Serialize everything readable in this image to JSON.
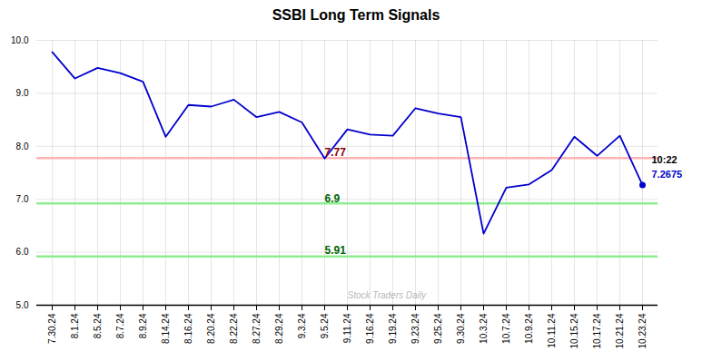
{
  "chart_data": {
    "type": "line",
    "title": "SSBI Long Term Signals",
    "categories": [
      "7.30.24",
      "8.1.24",
      "8.5.24",
      "8.7.24",
      "8.9.24",
      "8.14.24",
      "8.16.24",
      "8.20.24",
      "8.22.24",
      "8.27.24",
      "8.29.24",
      "9.3.24",
      "9.5.24",
      "9.11.24",
      "9.16.24",
      "9.19.24",
      "9.23.24",
      "9.25.24",
      "9.30.24",
      "10.3.24",
      "10.7.24",
      "10.9.24",
      "10.11.24",
      "10.15.24",
      "10.17.24",
      "10.21.24",
      "10.23.24"
    ],
    "values": [
      9.78,
      9.28,
      9.48,
      9.38,
      9.22,
      8.18,
      8.78,
      8.75,
      8.88,
      8.55,
      8.65,
      8.45,
      7.77,
      8.32,
      8.22,
      8.2,
      8.72,
      8.62,
      8.55,
      6.35,
      7.22,
      7.28,
      7.55,
      8.18,
      7.82,
      8.2,
      7.2675
    ],
    "color": "#0000cc",
    "ylim": [
      5,
      10
    ],
    "yticks": [
      5,
      6,
      7,
      8,
      9,
      10
    ],
    "grid": true,
    "hlines": [
      {
        "y": 7.78,
        "color": "#ffb3b3"
      },
      {
        "y": 6.92,
        "color": "#90ee90"
      },
      {
        "y": 5.92,
        "color": "#90ee90"
      }
    ],
    "annotations": [
      {
        "text": "7.77",
        "x": "9.5.24",
        "y": 7.77,
        "color": "#8b0000"
      },
      {
        "text": "6.9",
        "x": "9.5.24",
        "y": 6.9,
        "color": "#006600"
      },
      {
        "text": "5.91",
        "x": "9.5.24",
        "y": 5.91,
        "color": "#006600"
      }
    ],
    "point_annotation": {
      "x": "10.23.24",
      "y": 7.2675,
      "marker": "circle",
      "texts": [
        {
          "text": "10:22",
          "color": "#000000"
        },
        {
          "text": "7.2675",
          "color": "#0000cc"
        }
      ]
    },
    "watermark": "Stock Traders Daily"
  }
}
